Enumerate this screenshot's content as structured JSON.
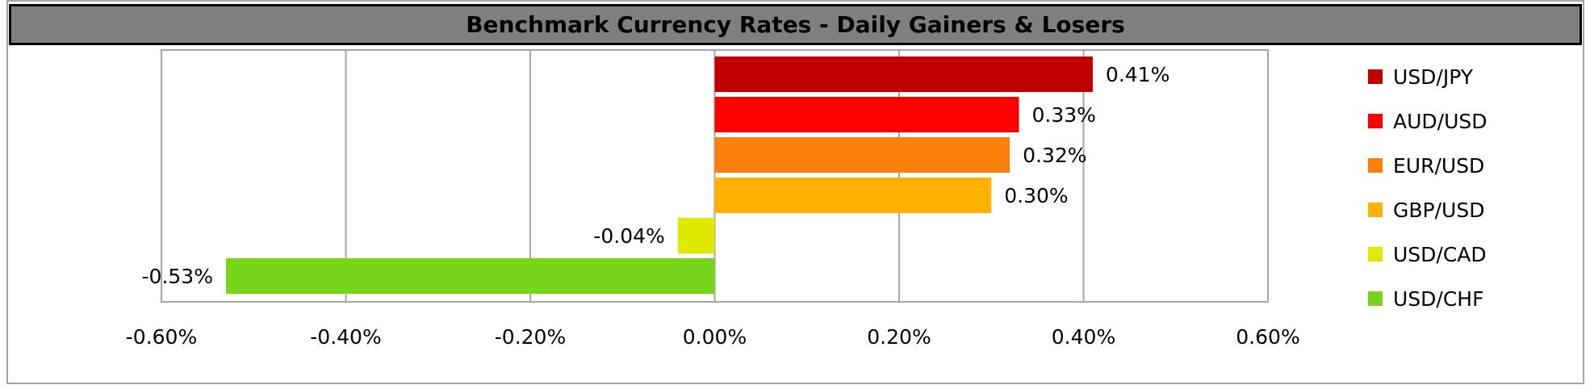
{
  "chart_data": {
    "type": "bar",
    "orientation": "horizontal",
    "title": "Benchmark Currency Rates - Daily Gainers & Losers",
    "categories": [
      "USD/JPY",
      "AUD/USD",
      "EUR/USD",
      "GBP/USD",
      "USD/CAD",
      "USD/CHF"
    ],
    "values": [
      0.41,
      0.33,
      0.32,
      0.3,
      -0.04,
      -0.53
    ],
    "data_labels": [
      "0.41%",
      "0.33%",
      "0.32%",
      "0.30%",
      "-0.04%",
      "-0.53%"
    ],
    "colors": [
      "#c00000",
      "#ff0000",
      "#fb7f0c",
      "#ffb100",
      "#dfea00",
      "#77d61c"
    ],
    "xlim": [
      -0.6,
      0.6
    ],
    "x_ticks": [
      -0.6,
      -0.4,
      -0.2,
      0.0,
      0.2,
      0.4,
      0.6
    ],
    "x_tick_labels": [
      "-0.60%",
      "-0.40%",
      "-0.20%",
      "0.00%",
      "0.20%",
      "0.40%",
      "0.60%"
    ],
    "grid": "vertical",
    "legend": {
      "position": "right",
      "entries": [
        "USD/JPY",
        "AUD/USD",
        "EUR/USD",
        "GBP/USD",
        "USD/CAD",
        "USD/CHF"
      ]
    },
    "xlabel": "",
    "ylabel": ""
  }
}
